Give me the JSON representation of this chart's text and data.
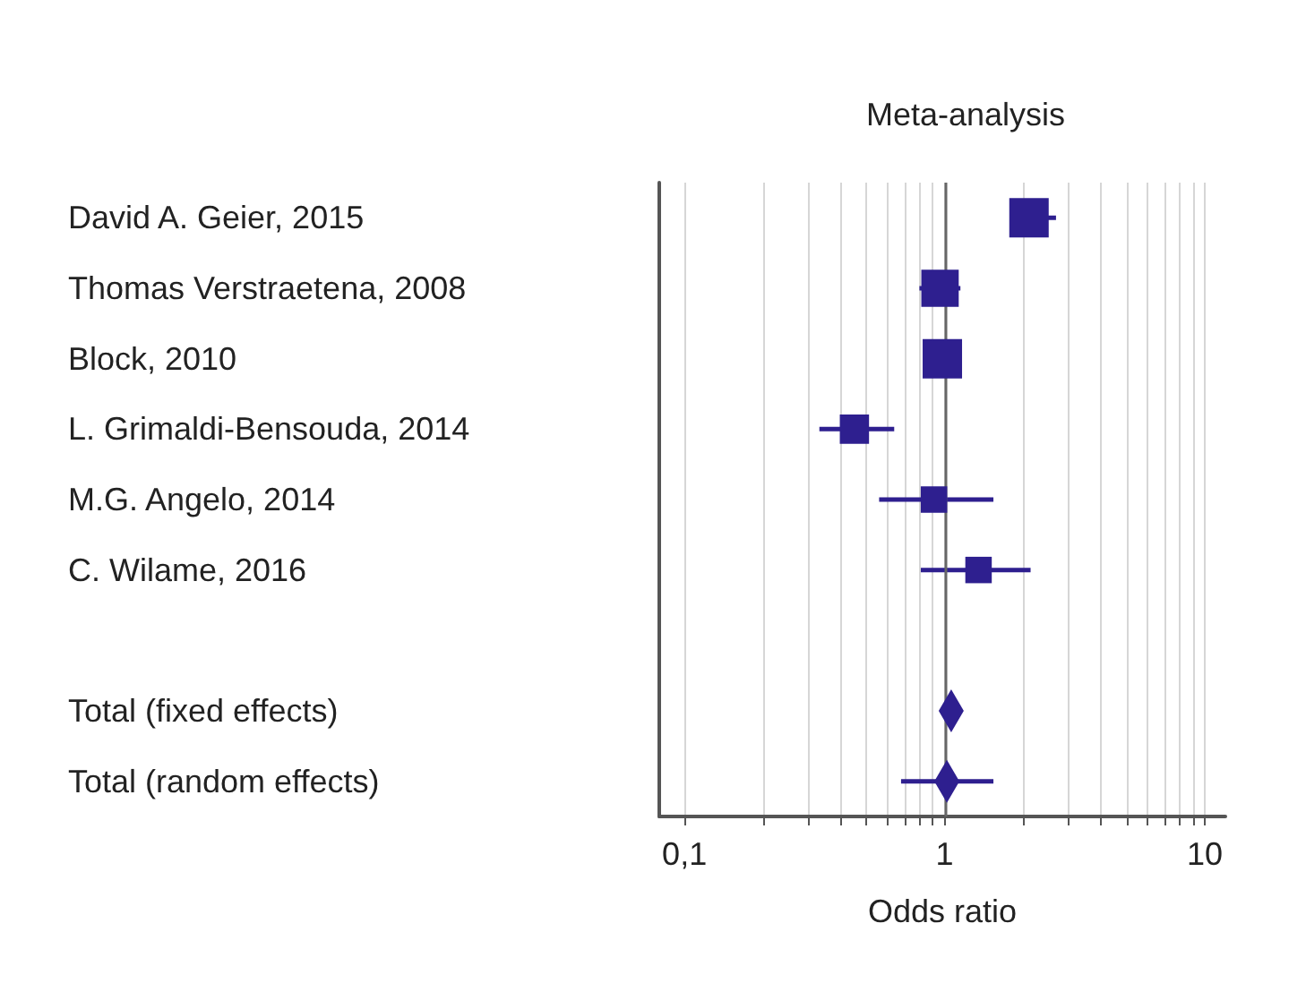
{
  "chart_data": {
    "type": "scatter",
    "orientation": "horizontal",
    "title": "Meta-analysis",
    "xlabel": "Odds ratio",
    "categories": [
      "David A. Geier, 2015",
      "Thomas Verstraetena, 2008",
      "Block, 2010",
      "L. Grimaldi-Bensouda, 2014",
      "M.G. Angelo, 2014",
      "C. Wilame, 2016",
      null,
      "Total (fixed effects)",
      "Total (random effects)"
    ],
    "log": "x",
    "xlim": [
      0.08,
      12
    ],
    "xticks": [
      {
        "value": 0.1,
        "label": "0,1"
      },
      {
        "value": 0.2,
        "label": null
      },
      {
        "value": 0.3,
        "label": null
      },
      {
        "value": 0.4,
        "label": null
      },
      {
        "value": 0.5,
        "label": null
      },
      {
        "value": 0.6,
        "label": null
      },
      {
        "value": 0.7,
        "label": null
      },
      {
        "value": 0.8,
        "label": null
      },
      {
        "value": 0.9,
        "label": null
      },
      1,
      {
        "value": 2,
        "label": null
      },
      {
        "value": 3,
        "label": null
      },
      {
        "value": 4,
        "label": null
      },
      {
        "value": 5,
        "label": null
      },
      {
        "value": 6,
        "label": null
      },
      {
        "value": 7,
        "label": null
      },
      {
        "value": 8,
        "label": null
      },
      {
        "value": 9,
        "label": null
      },
      10
    ],
    "grid": "x",
    "ref_lines": [
      {
        "axis": "x",
        "value": 1,
        "color": "#666666"
      }
    ],
    "series": [
      {
        "color": "#2e1f8f",
        "marker": "square",
        "values": [
          2.11,
          0.96,
          0.98,
          0.45,
          0.91,
          1.35,
          null,
          null,
          null
        ],
        "errors": [
          [
            1.79,
            2.68
          ],
          [
            0.8,
            1.15
          ],
          null,
          [
            0.33,
            0.64
          ],
          [
            0.56,
            1.54
          ],
          [
            0.81,
            2.14
          ],
          null,
          null,
          null
        ],
        "sizes": [
          1,
          0.9,
          1,
          0.55,
          0.45,
          0.45,
          null,
          null,
          null
        ]
      },
      {
        "color": "#2e1f8f",
        "marker": "diamond",
        "values": [
          null,
          null,
          null,
          null,
          null,
          null,
          null,
          1.06,
          1.02
        ],
        "errors": [
          null,
          null,
          null,
          null,
          null,
          null,
          null,
          [
            0.99,
            1.14
          ],
          [
            0.68,
            1.54
          ]
        ]
      }
    ]
  }
}
